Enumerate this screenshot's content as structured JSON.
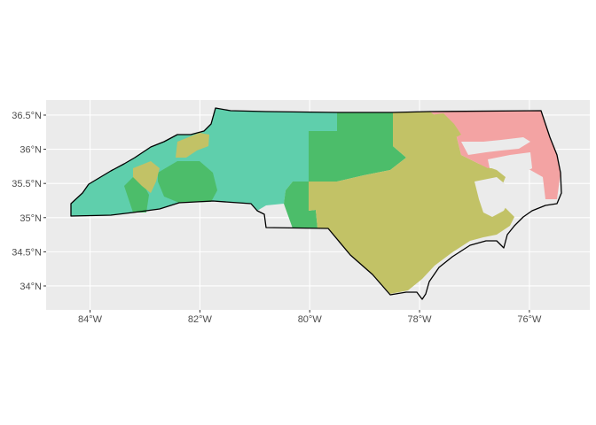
{
  "chart_data": {
    "type": "map",
    "title": "",
    "xlabel": "",
    "ylabel": "",
    "xlim": [
      -84.8,
      -74.9
    ],
    "ylim": [
      33.65,
      36.72
    ],
    "x_ticks": [
      {
        "value": -84,
        "label": "84°W"
      },
      {
        "value": -82,
        "label": "82°W"
      },
      {
        "value": -80,
        "label": "80°W"
      },
      {
        "value": -78,
        "label": "78°W"
      },
      {
        "value": -76,
        "label": "76°W"
      }
    ],
    "y_ticks": [
      {
        "value": 34.0,
        "label": "34°N"
      },
      {
        "value": 34.5,
        "label": "34.5°N"
      },
      {
        "value": 35.0,
        "label": "35°N"
      },
      {
        "value": 35.5,
        "label": "35.5°N"
      },
      {
        "value": 36.0,
        "label": "36°N"
      },
      {
        "value": 36.5,
        "label": "36.5°N"
      }
    ],
    "grid": true,
    "legend": "none",
    "colors": {
      "panel_background": "#ebebeb",
      "grid_major": "#ffffff",
      "region_teal": "#5fcfac",
      "region_green": "#4cbd6a",
      "region_olive": "#c2c266",
      "region_pink": "#f3a3a3",
      "outline": "#000000"
    }
  }
}
